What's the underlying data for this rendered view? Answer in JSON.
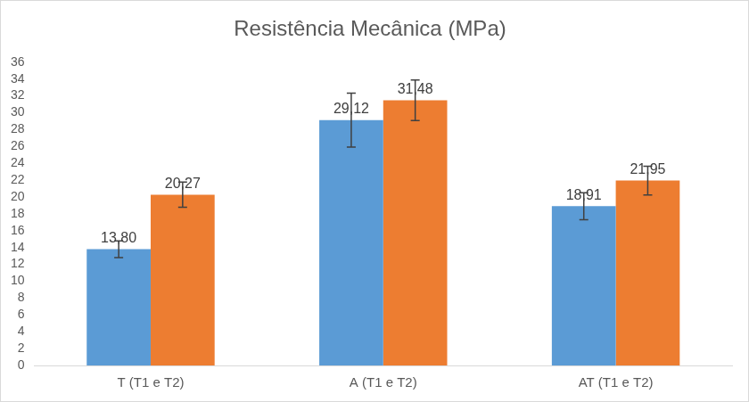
{
  "chart_data": {
    "type": "bar",
    "title": "Resistência Mecânica (MPa)",
    "categories": [
      "T (T1 e T2)",
      "A (T1 e T2)",
      "AT (T1 e T2)"
    ],
    "series": [
      {
        "color": "#5b9bd5",
        "values": [
          13.8,
          29.12,
          18.91
        ],
        "value_labels": [
          "13,80",
          "29,12",
          "18,91"
        ],
        "errors": [
          1.0,
          3.2,
          1.6
        ]
      },
      {
        "color": "#ed7d31",
        "values": [
          20.27,
          31.48,
          21.95
        ],
        "value_labels": [
          "20,27",
          "31,48",
          "21,95"
        ],
        "errors": [
          1.5,
          2.4,
          1.7
        ]
      }
    ],
    "ylim": [
      0,
      36
    ],
    "yticks": [
      0,
      2,
      4,
      6,
      8,
      10,
      12,
      14,
      16,
      18,
      20,
      22,
      24,
      26,
      28,
      30,
      32,
      34,
      36
    ],
    "grid": false,
    "data_labels": true
  }
}
